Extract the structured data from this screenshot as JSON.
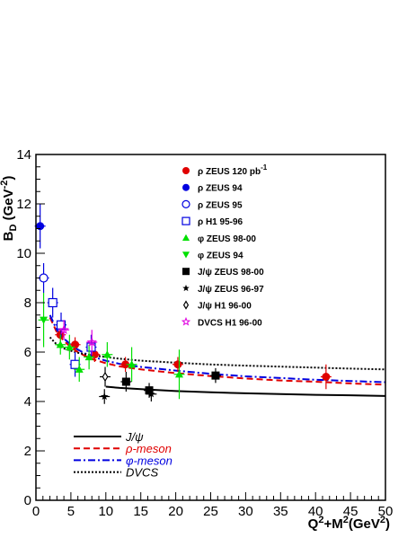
{
  "chart_data": {
    "type": "scatter",
    "xlabel_main": "Q",
    "xlabel_sup1": "2",
    "xlabel_mid": "+M",
    "xlabel_sup2": "2",
    "xlabel_unit": "(GeV",
    "xlabel_sup3": "2",
    "xlabel_close": ")",
    "ylabel_main": "B",
    "ylabel_sub": "D",
    "ylabel_unit": " (GeV",
    "ylabel_sup": "-2",
    "ylabel_close": ")",
    "xlim": [
      0,
      50
    ],
    "ylim": [
      0,
      14
    ],
    "x_ticks": [
      0,
      5,
      10,
      15,
      20,
      25,
      30,
      35,
      40,
      45,
      50
    ],
    "y_ticks": [
      0,
      2,
      4,
      6,
      8,
      10,
      12,
      14
    ],
    "legend_top": [
      {
        "label": "ρ ZEUS 120 pb",
        "sup": "-1",
        "marker": "circle-filled",
        "color": "#e00000"
      },
      {
        "label": "ρ ZEUS 94",
        "marker": "circle-filled",
        "color": "#0000e0"
      },
      {
        "label": "ρ ZEUS 95",
        "marker": "circle-open",
        "color": "#0000e0"
      },
      {
        "label": "ρ H1 95-96",
        "marker": "square-open",
        "color": "#0000e0"
      },
      {
        "label": "φ ZEUS 98-00",
        "marker": "triangle-up",
        "color": "#00e000"
      },
      {
        "label": "φ ZEUS 94",
        "marker": "triangle-down",
        "color": "#00e000"
      },
      {
        "label": "J/ψ ZEUS 98-00",
        "marker": "square-filled",
        "color": "#000000"
      },
      {
        "label": "J/ψ ZEUS 96-97",
        "marker": "star",
        "color": "#000000"
      },
      {
        "label": "J/ψ H1 96-00",
        "marker": "diamond-open",
        "color": "#000000"
      },
      {
        "label": "DVCS H1 96-00",
        "marker": "star-open",
        "color": "#e000e0"
      }
    ],
    "legend_bottom": [
      {
        "label": "J/ψ",
        "style": "solid",
        "color": "#000000"
      },
      {
        "label": "ρ-meson",
        "style": "dashed",
        "color": "#e00000"
      },
      {
        "label": "φ-meson",
        "style": "dashdot",
        "color": "#0000e0"
      },
      {
        "label": "DVCS",
        "style": "dotted",
        "color": "#000000"
      }
    ],
    "curves": [
      {
        "label": "J/ψ",
        "style": "solid",
        "color": "#000000",
        "x": [
          10,
          12,
          15,
          20,
          25,
          30,
          35,
          40,
          45,
          50
        ],
        "y": [
          4.6,
          4.55,
          4.5,
          4.42,
          4.37,
          4.33,
          4.3,
          4.27,
          4.25,
          4.22
        ]
      },
      {
        "label": "ρ-meson",
        "style": "dashed",
        "color": "#e00000",
        "x": [
          2,
          3,
          4,
          5,
          6,
          7,
          8,
          10,
          12,
          15,
          20,
          25,
          30,
          35,
          40,
          45,
          50
        ],
        "y": [
          7.4,
          6.8,
          6.45,
          6.2,
          6.0,
          5.85,
          5.72,
          5.55,
          5.42,
          5.3,
          5.15,
          5.03,
          4.93,
          4.85,
          4.8,
          4.73,
          4.68
        ]
      },
      {
        "label": "φ-meson",
        "style": "dashdot",
        "color": "#0000e0",
        "x": [
          2,
          3,
          4,
          5,
          6,
          7,
          8,
          10,
          12,
          15,
          20,
          25,
          30,
          35,
          40,
          45,
          50
        ],
        "y": [
          7.5,
          6.9,
          6.55,
          6.3,
          6.1,
          5.95,
          5.82,
          5.65,
          5.52,
          5.4,
          5.25,
          5.12,
          5.02,
          4.95,
          4.88,
          4.83,
          4.78
        ]
      },
      {
        "label": "DVCS",
        "style": "dotted",
        "color": "#000000",
        "x": [
          2,
          3,
          4,
          5,
          6,
          8,
          10,
          12,
          15,
          20,
          25,
          30,
          35,
          40,
          45,
          50
        ],
        "y": [
          6.6,
          6.3,
          6.15,
          6.05,
          5.97,
          5.87,
          5.8,
          5.73,
          5.65,
          5.57,
          5.5,
          5.45,
          5.41,
          5.37,
          5.33,
          5.3
        ]
      }
    ],
    "series": [
      {
        "name": "ρ ZEUS 120 pb-1",
        "marker": "circle-filled",
        "color": "#e00000",
        "points": [
          [
            3.5,
            6.7,
            0.3
          ],
          [
            5.6,
            6.3,
            0.3
          ],
          [
            8.4,
            5.9,
            0.3
          ],
          [
            12.8,
            5.5,
            0.3
          ],
          [
            20.3,
            5.5,
            0.3
          ],
          [
            41.5,
            5.0,
            0.5
          ]
        ]
      },
      {
        "name": "ρ ZEUS 94",
        "marker": "circle-filled",
        "color": "#0000e0",
        "points": [
          [
            0.6,
            11.1,
            0.9
          ]
        ]
      },
      {
        "name": "ρ ZEUS 95",
        "marker": "circle-open",
        "color": "#0000e0",
        "points": [
          [
            1.1,
            9.0,
            0.6
          ]
        ]
      },
      {
        "name": "ρ H1 95-96",
        "marker": "square-open",
        "color": "#0000e0",
        "points": [
          [
            2.4,
            8.0,
            0.6
          ],
          [
            3.6,
            7.1,
            0.5
          ],
          [
            5.6,
            5.5,
            0.5
          ],
          [
            7.9,
            6.2,
            0.5
          ]
        ]
      },
      {
        "name": "φ ZEUS 98-00",
        "marker": "triangle-up",
        "color": "#00e000",
        "points": [
          [
            3.5,
            6.3,
            0.4
          ],
          [
            4.8,
            6.2,
            0.5
          ],
          [
            6.2,
            5.3,
            0.5
          ],
          [
            7.6,
            5.8,
            0.5
          ],
          [
            10.2,
            5.9,
            0.5
          ],
          [
            13.7,
            5.5,
            0.7
          ],
          [
            20.5,
            5.1,
            1.0
          ]
        ]
      },
      {
        "name": "φ ZEUS 94",
        "marker": "triangle-down",
        "color": "#00e000",
        "points": [
          [
            1.1,
            7.3,
            1.1
          ]
        ]
      },
      {
        "name": "J/ψ ZEUS 98-00",
        "marker": "square-filled",
        "color": "#000000",
        "points": [
          [
            12.9,
            4.8,
            0.4
          ],
          [
            16.2,
            4.45,
            0.3
          ],
          [
            25.7,
            5.05,
            0.3
          ]
        ]
      },
      {
        "name": "J/ψ ZEUS 96-97",
        "marker": "star",
        "color": "#000000",
        "points": [
          [
            9.8,
            4.2,
            0.3
          ],
          [
            16.5,
            4.3,
            0.3
          ]
        ]
      },
      {
        "name": "J/ψ H1 96-00",
        "marker": "diamond-open",
        "color": "#000000",
        "points": [
          [
            9.9,
            5.0,
            0.4
          ]
        ]
      },
      {
        "name": "DVCS H1 96-00",
        "marker": "star-open",
        "color": "#e000e0",
        "points": [
          [
            4.0,
            6.9,
            0.4
          ],
          [
            8.0,
            6.4,
            0.5
          ]
        ]
      }
    ]
  }
}
